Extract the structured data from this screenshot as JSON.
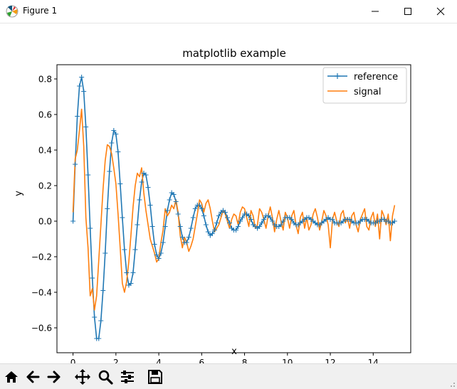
{
  "window": {
    "title": "Figure 1",
    "controls": [
      "minimize",
      "maximize",
      "close"
    ]
  },
  "toolbar": {
    "buttons": [
      "home-icon",
      "back-icon",
      "forward-icon",
      "pan-icon",
      "zoom-icon",
      "configure-subplots-icon",
      "save-icon"
    ]
  },
  "chart_data": {
    "type": "line",
    "title": "matplotlib example",
    "xlabel": "x",
    "ylabel": "y",
    "xlim": [
      -0.75,
      15.75
    ],
    "ylim": [
      -0.74,
      0.88
    ],
    "xticks": [
      0,
      2,
      4,
      6,
      8,
      10,
      12,
      14
    ],
    "xtick_labels": [
      "0",
      "2",
      "4",
      "6",
      "8",
      "10",
      "12",
      "14"
    ],
    "yticks": [
      -0.6,
      -0.4,
      -0.2,
      0.0,
      0.2,
      0.4,
      0.6,
      0.8
    ],
    "ytick_labels": [
      "−0.6",
      "−0.4",
      "−0.2",
      "0.0",
      "0.2",
      "0.4",
      "0.6",
      "0.8"
    ],
    "grid": false,
    "legend_position": "top-right",
    "series": [
      {
        "name": "reference",
        "color": "#1f77b4",
        "marker": "+",
        "x": [
          0.0,
          0.1,
          0.2,
          0.3,
          0.4,
          0.5,
          0.6,
          0.7,
          0.8,
          0.9,
          1.0,
          1.1,
          1.2,
          1.3,
          1.4,
          1.5,
          1.6,
          1.7,
          1.8,
          1.9,
          2.0,
          2.1,
          2.2,
          2.3,
          2.4,
          2.5,
          2.6,
          2.7,
          2.8,
          2.9,
          3.0,
          3.1,
          3.2,
          3.3,
          3.4,
          3.5,
          3.6,
          3.7,
          3.8,
          3.9,
          4.0,
          4.1,
          4.2,
          4.3,
          4.4,
          4.5,
          4.6,
          4.7,
          4.8,
          4.9,
          5.0,
          5.1,
          5.2,
          5.3,
          5.4,
          5.5,
          5.6,
          5.7,
          5.8,
          5.9,
          6.0,
          6.1,
          6.2,
          6.3,
          6.4,
          6.5,
          6.6,
          6.7,
          6.8,
          6.9,
          7.0,
          7.1,
          7.2,
          7.3,
          7.4,
          7.5,
          7.6,
          7.7,
          7.8,
          7.9,
          8.0,
          8.1,
          8.2,
          8.3,
          8.4,
          8.5,
          8.6,
          8.7,
          8.8,
          8.9,
          9.0,
          9.1,
          9.2,
          9.3,
          9.4,
          9.5,
          9.6,
          9.7,
          9.8,
          9.9,
          10.0,
          10.1,
          10.2,
          10.3,
          10.4,
          10.5,
          10.6,
          10.7,
          10.8,
          10.9,
          11.0,
          11.1,
          11.2,
          11.3,
          11.4,
          11.5,
          11.6,
          11.7,
          11.8,
          11.9,
          12.0,
          12.1,
          12.2,
          12.3,
          12.4,
          12.5,
          12.6,
          12.7,
          12.8,
          12.9,
          13.0,
          13.1,
          13.2,
          13.3,
          13.4,
          13.5,
          13.6,
          13.7,
          13.8,
          13.9,
          14.0,
          14.1,
          14.2,
          14.3,
          14.4,
          14.5,
          14.6,
          14.7,
          14.8,
          14.9,
          15.0
        ],
        "y": [
          0.0,
          0.32,
          0.59,
          0.76,
          0.81,
          0.73,
          0.53,
          0.26,
          -0.04,
          -0.32,
          -0.54,
          -0.66,
          -0.66,
          -0.56,
          -0.39,
          -0.18,
          0.07,
          0.28,
          0.44,
          0.51,
          0.49,
          0.39,
          0.21,
          0.02,
          -0.16,
          -0.29,
          -0.36,
          -0.35,
          -0.29,
          -0.16,
          -0.02,
          0.12,
          0.22,
          0.27,
          0.26,
          0.19,
          0.09,
          -0.03,
          -0.13,
          -0.19,
          -0.21,
          -0.18,
          -0.12,
          -0.03,
          0.06,
          0.12,
          0.16,
          0.15,
          0.11,
          0.04,
          -0.03,
          -0.09,
          -0.12,
          -0.12,
          -0.09,
          -0.04,
          0.02,
          0.07,
          0.09,
          0.09,
          0.07,
          0.03,
          -0.02,
          -0.06,
          -0.08,
          -0.07,
          -0.05,
          -0.01,
          0.03,
          0.05,
          0.06,
          0.05,
          0.02,
          -0.01,
          -0.04,
          -0.05,
          -0.05,
          -0.03,
          0.0,
          0.02,
          0.04,
          0.04,
          0.03,
          0.01,
          -0.02,
          -0.03,
          -0.04,
          -0.03,
          -0.01,
          0.01,
          0.03,
          0.03,
          0.02,
          0.0,
          -0.02,
          -0.03,
          -0.03,
          -0.02,
          0.0,
          0.02,
          0.02,
          0.02,
          0.01,
          -0.01,
          -0.02,
          -0.02,
          -0.01,
          0.0,
          0.01,
          0.02,
          0.02,
          0.01,
          0.0,
          -0.01,
          -0.02,
          -0.02,
          -0.01,
          0.0,
          0.01,
          0.02,
          0.01,
          0.01,
          -0.01,
          -0.01,
          -0.01,
          -0.01,
          0.0,
          0.01,
          0.01,
          0.01,
          0.0,
          -0.01,
          -0.01,
          -0.01,
          0.0,
          0.01,
          0.01,
          0.01,
          0.0,
          -0.01,
          -0.01,
          -0.01,
          0.0,
          0.0,
          0.01,
          0.01,
          0.0,
          0.0,
          -0.01,
          -0.01,
          0.0
        ]
      },
      {
        "name": "signal",
        "color": "#ff7f0e",
        "marker": "none",
        "x": [
          0.0,
          0.1,
          0.2,
          0.3,
          0.4,
          0.5,
          0.6,
          0.7,
          0.8,
          0.9,
          1.0,
          1.1,
          1.2,
          1.3,
          1.4,
          1.5,
          1.6,
          1.7,
          1.8,
          1.9,
          2.0,
          2.1,
          2.2,
          2.3,
          2.4,
          2.5,
          2.6,
          2.7,
          2.8,
          2.9,
          3.0,
          3.1,
          3.2,
          3.3,
          3.4,
          3.5,
          3.6,
          3.7,
          3.8,
          3.9,
          4.0,
          4.1,
          4.2,
          4.3,
          4.4,
          4.5,
          4.6,
          4.7,
          4.8,
          4.9,
          5.0,
          5.1,
          5.2,
          5.3,
          5.4,
          5.5,
          5.6,
          5.7,
          5.8,
          5.9,
          6.0,
          6.1,
          6.2,
          6.3,
          6.4,
          6.5,
          6.6,
          6.7,
          6.8,
          6.9,
          7.0,
          7.1,
          7.2,
          7.3,
          7.4,
          7.5,
          7.6,
          7.7,
          7.8,
          7.9,
          8.0,
          8.1,
          8.2,
          8.3,
          8.4,
          8.5,
          8.6,
          8.7,
          8.8,
          8.9,
          9.0,
          9.1,
          9.2,
          9.3,
          9.4,
          9.5,
          9.6,
          9.7,
          9.8,
          9.9,
          10.0,
          10.1,
          10.2,
          10.3,
          10.4,
          10.5,
          10.6,
          10.7,
          10.8,
          10.9,
          11.0,
          11.1,
          11.2,
          11.3,
          11.4,
          11.5,
          11.6,
          11.7,
          11.8,
          11.9,
          12.0,
          12.1,
          12.2,
          12.3,
          12.4,
          12.5,
          12.6,
          12.7,
          12.8,
          12.9,
          13.0,
          13.1,
          13.2,
          13.3,
          13.4,
          13.5,
          13.6,
          13.7,
          13.8,
          13.9,
          14.0,
          14.1,
          14.2,
          14.3,
          14.4,
          14.5,
          14.6,
          14.7,
          14.8,
          14.9,
          15.0
        ],
        "y": [
          0.05,
          0.35,
          0.4,
          0.51,
          0.63,
          0.42,
          0.02,
          -0.15,
          -0.42,
          -0.38,
          -0.5,
          -0.42,
          -0.22,
          -0.02,
          0.18,
          0.34,
          0.43,
          0.42,
          0.38,
          0.3,
          0.21,
          0.04,
          -0.15,
          -0.35,
          -0.4,
          -0.34,
          -0.23,
          -0.08,
          0.08,
          0.2,
          0.27,
          0.25,
          0.3,
          0.16,
          0.06,
          -0.02,
          -0.1,
          -0.14,
          -0.18,
          -0.23,
          -0.21,
          -0.12,
          -0.05,
          0.07,
          0.03,
          0.05,
          0.09,
          0.07,
          0.12,
          0.05,
          -0.08,
          -0.15,
          -0.09,
          -0.12,
          -0.17,
          -0.14,
          -0.1,
          -0.03,
          0.04,
          0.12,
          0.1,
          0.05,
          0.1,
          0.12,
          0.07,
          0.0,
          -0.06,
          -0.04,
          -0.02,
          0.02,
          0.06,
          0.04,
          0.0,
          -0.04,
          0.01,
          0.04,
          0.03,
          -0.02,
          0.05,
          0.08,
          0.07,
          0.02,
          -0.03,
          0.06,
          0.03,
          -0.04,
          -0.02,
          0.07,
          0.05,
          0.01,
          -0.04,
          0.03,
          0.08,
          0.02,
          -0.06,
          0.01,
          0.06,
          0.0,
          -0.05,
          0.05,
          0.02,
          -0.04,
          0.03,
          0.06,
          -0.02,
          -0.07,
          0.02,
          0.05,
          -0.04,
          0.02,
          -0.05,
          -0.02,
          0.04,
          0.07,
          0.02,
          -0.05,
          0.0,
          0.06,
          0.03,
          -0.02,
          -0.15,
          0.01,
          0.05,
          0.0,
          -0.03,
          0.04,
          0.06,
          -0.01,
          0.02,
          -0.04,
          0.03,
          0.05,
          -0.02,
          -0.06,
          0.01,
          0.04,
          0.07,
          -0.03,
          -0.05,
          0.02,
          0.05,
          -0.03,
          0.04,
          -0.1,
          0.06,
          0.03,
          -0.02,
          0.04,
          -0.11,
          0.03,
          0.09
        ]
      }
    ]
  }
}
